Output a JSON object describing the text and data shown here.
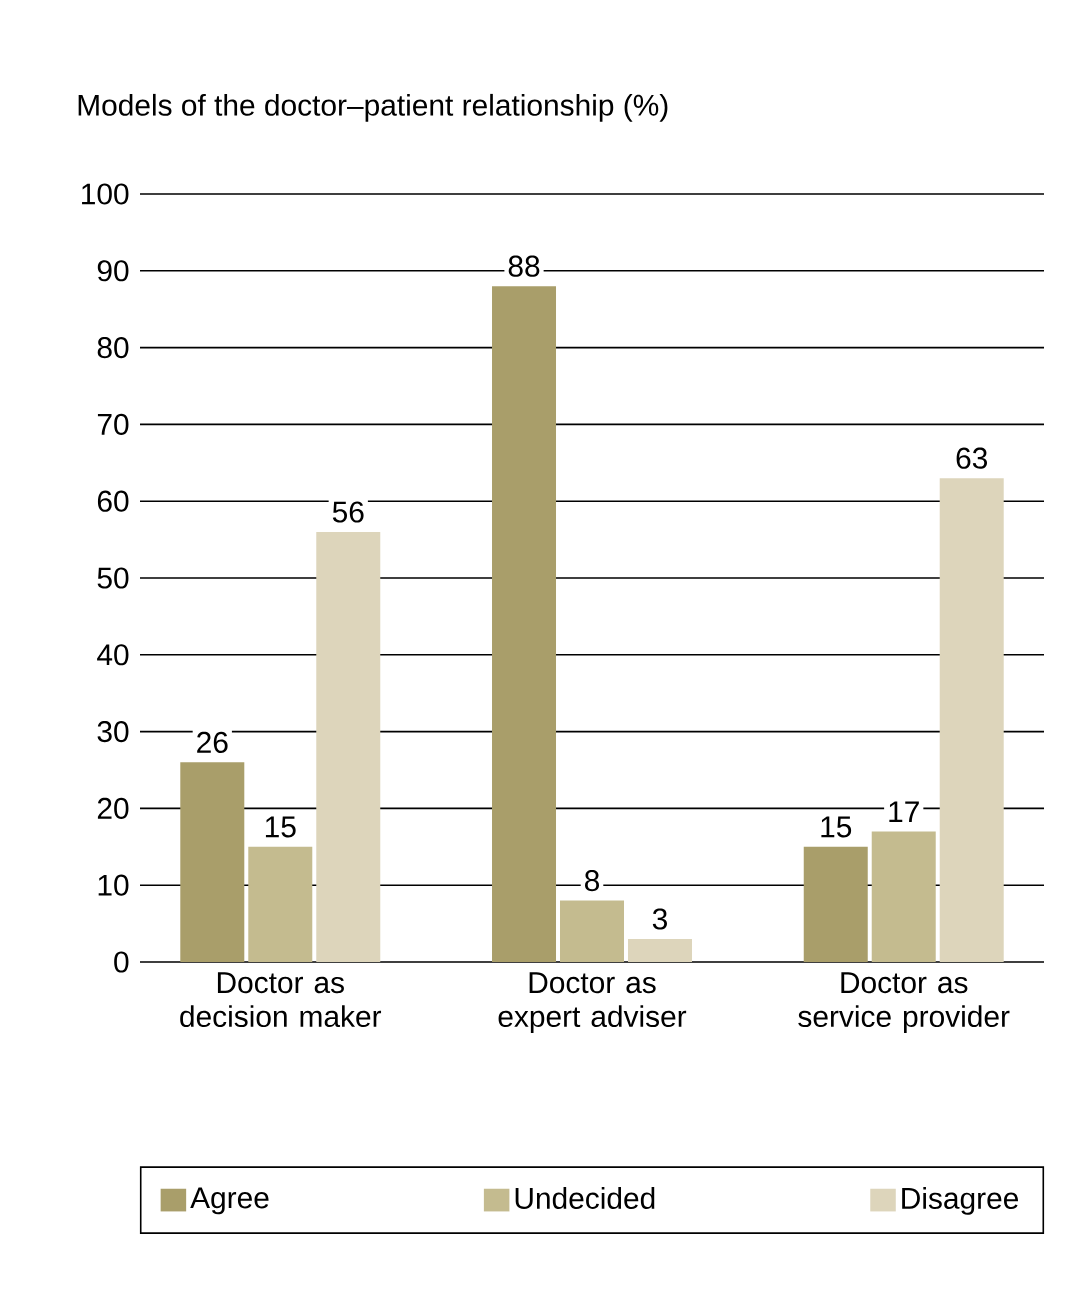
{
  "chart_data": {
    "type": "bar",
    "title": "Models of the doctor–patient relationship (%)",
    "categories": [
      "Doctor as decision maker",
      "Doctor as expert adviser",
      "Doctor as service provider"
    ],
    "series": [
      {
        "name": "Agree",
        "color": "#a99e6a",
        "values": [
          26,
          88,
          15
        ]
      },
      {
        "name": "Undecided",
        "color": "#c4bb8f",
        "values": [
          15,
          8,
          17
        ]
      },
      {
        "name": "Disagree",
        "color": "#ddd5bb",
        "values": [
          56,
          3,
          63
        ]
      }
    ],
    "ylim": [
      0,
      100
    ],
    "yticks": [
      0,
      10,
      20,
      30,
      40,
      50,
      60,
      70,
      80,
      90,
      100
    ],
    "grid": "y",
    "legend": "bottom",
    "data_labels": true
  }
}
